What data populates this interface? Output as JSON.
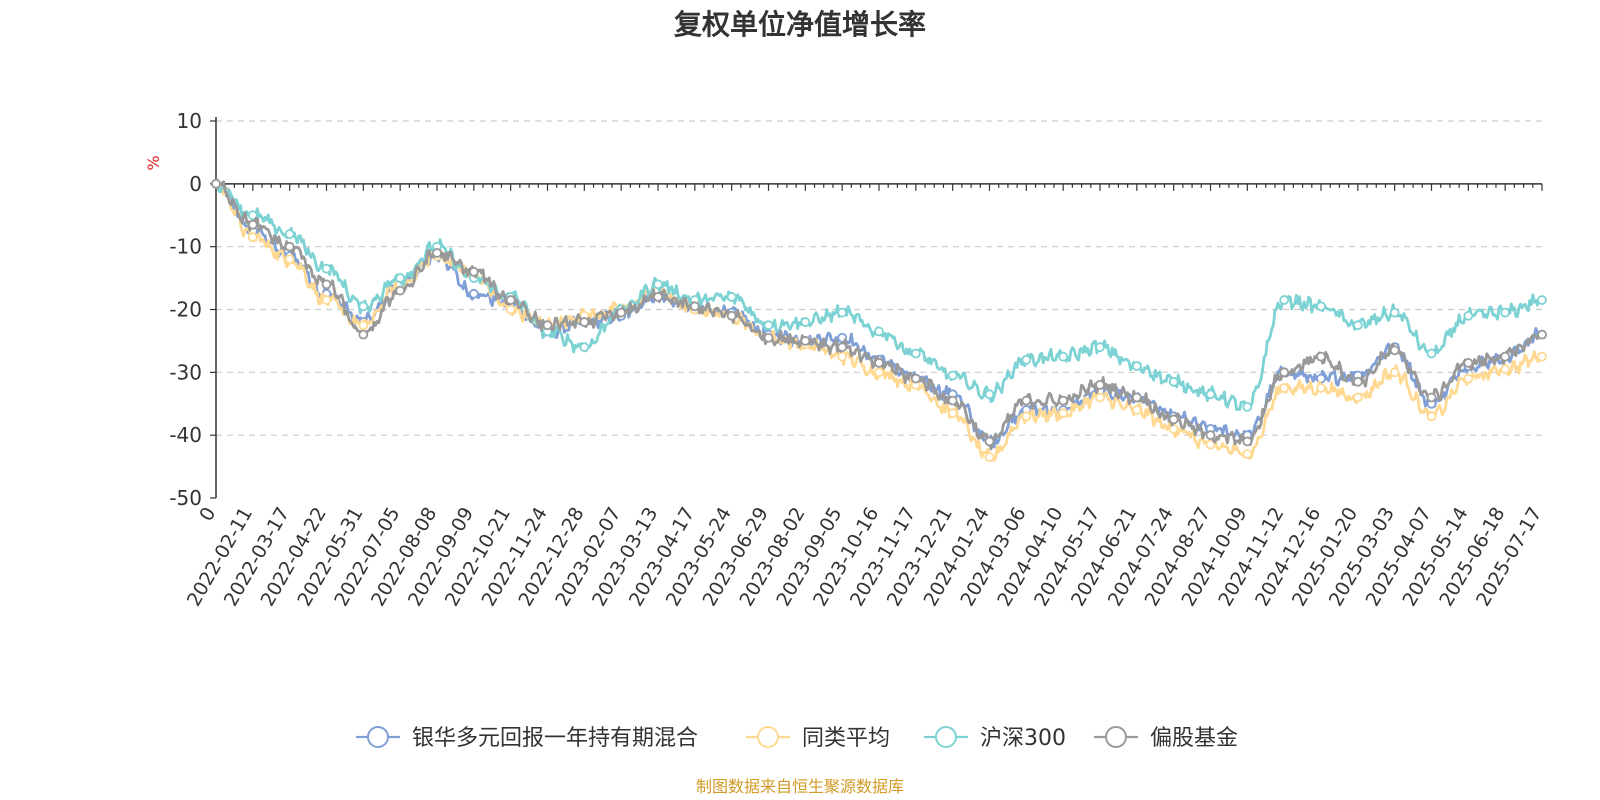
{
  "colors": {
    "series": [
      "#7f9fd6",
      "#ffd991",
      "#7dd2d4",
      "#999999"
    ],
    "source": "#d29a26",
    "unit": "#e02020",
    "grid": "#cccccc",
    "axis": "#333333"
  },
  "footer": {
    "source": "制图数据来自恒生聚源数据库"
  },
  "chart_data": {
    "type": "line",
    "title": "复权单位净值增长率",
    "ylabel": "%",
    "ylim": [
      -50,
      10
    ],
    "yticks": [
      10,
      0,
      -10,
      -20,
      -30,
      -40,
      -50
    ],
    "grid": "horizontal-dashed",
    "legend_position": "bottom-center",
    "x_ticks": [
      "0",
      "2022-02-11",
      "2022-03-17",
      "2022-04-22",
      "2022-05-31",
      "2022-07-05",
      "2022-08-08",
      "2022-09-09",
      "2022-10-21",
      "2022-11-24",
      "2022-12-28",
      "2023-02-07",
      "2023-03-13",
      "2023-04-17",
      "2023-05-24",
      "2023-06-29",
      "2023-08-02",
      "2023-09-05",
      "2023-10-16",
      "2023-11-17",
      "2023-12-21",
      "2024-01-24",
      "2024-03-06",
      "2024-04-10",
      "2024-05-17",
      "2024-06-21",
      "2024-07-24",
      "2024-08-27",
      "2024-10-09",
      "2024-11-12",
      "2024-12-16",
      "2025-01-20",
      "2025-03-03",
      "2025-04-07",
      "2025-05-14",
      "2025-06-18",
      "2025-07-17"
    ],
    "series": [
      {
        "name": "银华多元回报一年持有期混合",
        "values": [
          0,
          -7.5,
          -11.5,
          -17.5,
          -22.0,
          -16.0,
          -11.5,
          -17.5,
          -19.0,
          -23.5,
          -22.0,
          -21.0,
          -17.5,
          -20.0,
          -20.5,
          -24.0,
          -25.0,
          -24.5,
          -28.0,
          -31.0,
          -33.5,
          -41.0,
          -36.0,
          -36.0,
          -33.0,
          -34.0,
          -37.0,
          -39.0,
          -40.0,
          -30.0,
          -31.0,
          -30.5,
          -26.0,
          -35.0,
          -29.0,
          -27.5,
          -24.0
        ]
      },
      {
        "name": "同类平均",
        "values": [
          0,
          -8.5,
          -12.0,
          -18.5,
          -22.5,
          -16.0,
          -11.5,
          -14.5,
          -20.0,
          -22.5,
          -21.0,
          -20.0,
          -17.0,
          -20.0,
          -21.0,
          -24.5,
          -25.5,
          -27.5,
          -30.0,
          -32.0,
          -36.5,
          -43.5,
          -37.0,
          -36.5,
          -34.0,
          -36.0,
          -39.0,
          -41.5,
          -43.0,
          -32.5,
          -32.5,
          -34.0,
          -30.0,
          -37.0,
          -31.0,
          -29.5,
          -27.5
        ]
      },
      {
        "name": "沪深300",
        "values": [
          0,
          -5.0,
          -8.0,
          -13.5,
          -19.5,
          -15.0,
          -10.0,
          -15.0,
          -18.0,
          -23.5,
          -26.0,
          -20.0,
          -16.0,
          -18.5,
          -18.0,
          -22.5,
          -22.0,
          -20.5,
          -23.5,
          -27.0,
          -30.5,
          -33.5,
          -28.0,
          -27.5,
          -26.0,
          -29.0,
          -31.5,
          -33.5,
          -35.5,
          -18.5,
          -19.5,
          -22.5,
          -20.5,
          -27.0,
          -21.0,
          -20.5,
          -18.5
        ]
      },
      {
        "name": "偏股基金",
        "values": [
          0,
          -6.5,
          -10.0,
          -16.0,
          -24.0,
          -17.0,
          -11.0,
          -14.0,
          -18.5,
          -22.5,
          -22.0,
          -20.5,
          -18.0,
          -19.5,
          -21.0,
          -24.5,
          -25.0,
          -26.0,
          -28.5,
          -31.0,
          -34.5,
          -41.0,
          -34.5,
          -34.5,
          -32.0,
          -34.0,
          -37.5,
          -40.0,
          -41.0,
          -30.0,
          -27.5,
          -31.5,
          -26.5,
          -34.0,
          -28.5,
          -27.5,
          -24.0
        ]
      }
    ]
  }
}
